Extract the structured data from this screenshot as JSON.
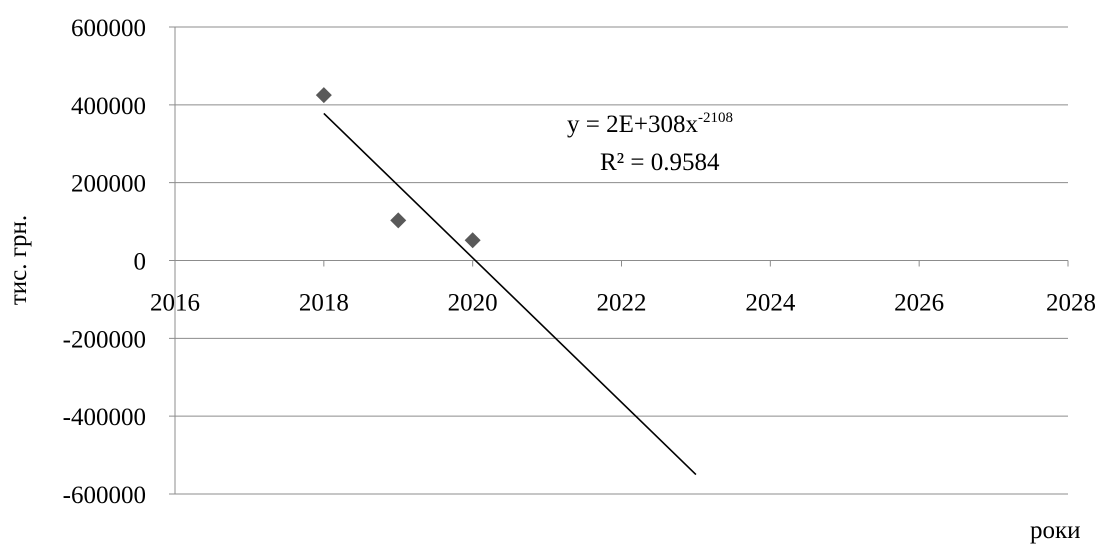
{
  "chart_data": {
    "type": "scatter",
    "title": "",
    "xlabel": "роки",
    "ylabel": "тис. грн.",
    "xlim": [
      2016,
      2028
    ],
    "ylim": [
      -600000,
      600000
    ],
    "x_ticks": [
      2016,
      2018,
      2020,
      2022,
      2024,
      2026,
      2028
    ],
    "x_tick_labels": [
      "2016",
      "2018",
      "2020",
      "2022",
      "2024",
      "2026",
      "2028"
    ],
    "y_ticks": [
      600000,
      400000,
      200000,
      0,
      -200000,
      -400000,
      -600000
    ],
    "y_tick_labels": [
      "600000",
      "400000",
      "200000",
      "0",
      "-200000",
      "-400000",
      "-600000"
    ],
    "grid": "horizontal",
    "legend": "none",
    "series": [
      {
        "marker": "diamond",
        "color": "#595959",
        "points": [
          {
            "x": 2018,
            "y": 425000
          },
          {
            "x": 2019,
            "y": 103000
          },
          {
            "x": 2020,
            "y": 52000
          }
        ]
      }
    ],
    "trendline": {
      "color": "#000000",
      "x": [
        2018,
        2023
      ],
      "y": [
        378000,
        -550000
      ],
      "equation": {
        "main": "y = 2E+308x",
        "exponent": "-2108",
        "r_squared": "R² = 0.9584"
      }
    }
  }
}
